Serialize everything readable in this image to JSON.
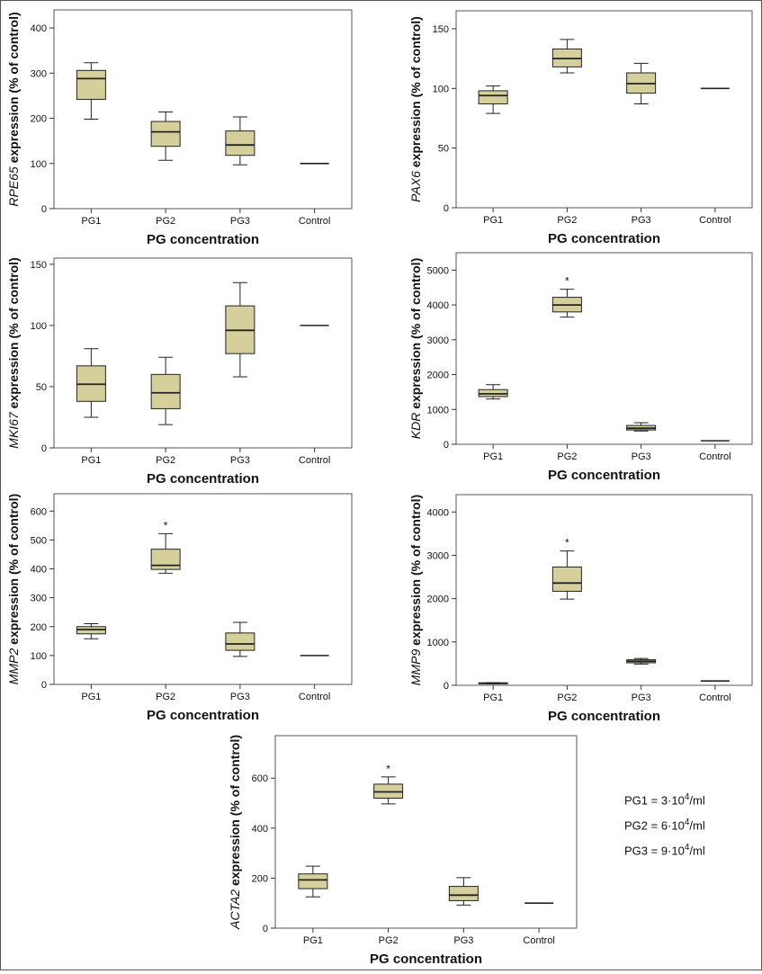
{
  "chart_data": [
    {
      "type": "box",
      "gene": "RPE65",
      "ylabel_suffix": " expression (% of control)",
      "xlabel": "PG concentration",
      "categories": [
        "PG1",
        "PG2",
        "PG3",
        "Control"
      ],
      "ylim": [
        0,
        440
      ],
      "yticks": [
        0,
        100,
        200,
        300,
        400
      ],
      "boxes": [
        {
          "min": 198,
          "q1": 242,
          "median": 288,
          "q3": 306,
          "max": 323,
          "sig": ""
        },
        {
          "min": 107,
          "q1": 138,
          "median": 170,
          "q3": 193,
          "max": 214,
          "sig": ""
        },
        {
          "min": 97,
          "q1": 118,
          "median": 141,
          "q3": 172,
          "max": 203,
          "sig": ""
        },
        {
          "min": 100,
          "q1": 100,
          "median": 100,
          "q3": 100,
          "max": 100,
          "sig": ""
        }
      ]
    },
    {
      "type": "box",
      "gene": "PAX6",
      "ylabel_suffix": " expression (% of control)",
      "xlabel": "PG concentration",
      "categories": [
        "PG1",
        "PG2",
        "PG3",
        "Control"
      ],
      "ylim": [
        0,
        165
      ],
      "yticks": [
        0,
        50,
        100,
        150
      ],
      "boxes": [
        {
          "min": 79,
          "q1": 87,
          "median": 94,
          "q3": 98,
          "max": 102,
          "sig": ""
        },
        {
          "min": 113,
          "q1": 118,
          "median": 125,
          "q3": 133,
          "max": 141,
          "sig": ""
        },
        {
          "min": 87,
          "q1": 96,
          "median": 104,
          "q3": 113,
          "max": 121,
          "sig": ""
        },
        {
          "min": 100,
          "q1": 100,
          "median": 100,
          "q3": 100,
          "max": 100,
          "sig": ""
        }
      ]
    },
    {
      "type": "box",
      "gene": "MKI67",
      "ylabel_suffix": " expression (% of control)",
      "xlabel": "PG concentration",
      "categories": [
        "PG1",
        "PG2",
        "PG3",
        "Control"
      ],
      "ylim": [
        0,
        155
      ],
      "yticks": [
        0,
        50,
        100,
        150
      ],
      "boxes": [
        {
          "min": 25,
          "q1": 38,
          "median": 52,
          "q3": 67,
          "max": 81,
          "sig": ""
        },
        {
          "min": 19,
          "q1": 32,
          "median": 45,
          "q3": 60,
          "max": 74,
          "sig": ""
        },
        {
          "min": 58,
          "q1": 77,
          "median": 96,
          "q3": 116,
          "max": 135,
          "sig": ""
        },
        {
          "min": 100,
          "q1": 100,
          "median": 100,
          "q3": 100,
          "max": 100,
          "sig": ""
        }
      ]
    },
    {
      "type": "box",
      "gene": "KDR",
      "ylabel_suffix": " expression (% of control)",
      "xlabel": "PG concentration",
      "categories": [
        "PG1",
        "PG2",
        "PG3",
        "Control"
      ],
      "ylim": [
        0,
        5500
      ],
      "yticks": [
        0,
        1000,
        2000,
        3000,
        4000,
        5000
      ],
      "boxes": [
        {
          "min": 1300,
          "q1": 1370,
          "median": 1450,
          "q3": 1570,
          "max": 1710,
          "sig": ""
        },
        {
          "min": 3650,
          "q1": 3800,
          "median": 4000,
          "q3": 4220,
          "max": 4450,
          "sig": "*"
        },
        {
          "min": 380,
          "q1": 410,
          "median": 460,
          "q3": 540,
          "max": 620,
          "sig": ""
        },
        {
          "min": 100,
          "q1": 100,
          "median": 100,
          "q3": 100,
          "max": 100,
          "sig": ""
        }
      ]
    },
    {
      "type": "box",
      "gene": "MMP2",
      "ylabel_suffix": " expression (% of control)",
      "xlabel": "PG concentration",
      "categories": [
        "PG1",
        "PG2",
        "PG3",
        "Control"
      ],
      "ylim": [
        0,
        660
      ],
      "yticks": [
        0,
        100,
        200,
        300,
        400,
        500,
        600
      ],
      "boxes": [
        {
          "min": 158,
          "q1": 175,
          "median": 190,
          "q3": 200,
          "max": 210,
          "sig": ""
        },
        {
          "min": 385,
          "q1": 398,
          "median": 412,
          "q3": 468,
          "max": 522,
          "sig": "*"
        },
        {
          "min": 97,
          "q1": 118,
          "median": 140,
          "q3": 178,
          "max": 215,
          "sig": ""
        },
        {
          "min": 100,
          "q1": 100,
          "median": 100,
          "q3": 100,
          "max": 100,
          "sig": ""
        }
      ]
    },
    {
      "type": "box",
      "gene": "MMP9",
      "ylabel_suffix": " expression (% of control)",
      "xlabel": "PG concentration",
      "categories": [
        "PG1",
        "PG2",
        "PG3",
        "Control"
      ],
      "ylim": [
        0,
        4400
      ],
      "yticks": [
        0,
        1000,
        2000,
        3000,
        4000
      ],
      "boxes": [
        {
          "min": 30,
          "q1": 40,
          "median": 50,
          "q3": 55,
          "max": 60,
          "sig": ""
        },
        {
          "min": 1990,
          "q1": 2170,
          "median": 2360,
          "q3": 2730,
          "max": 3100,
          "sig": "*"
        },
        {
          "min": 490,
          "q1": 520,
          "median": 555,
          "q3": 590,
          "max": 620,
          "sig": ""
        },
        {
          "min": 100,
          "q1": 100,
          "median": 100,
          "q3": 100,
          "max": 100,
          "sig": ""
        }
      ]
    },
    {
      "type": "box",
      "gene": "ACTA2",
      "ylabel_suffix": " expression (% of control)",
      "xlabel": "PG concentration",
      "categories": [
        "PG1",
        "PG2",
        "PG3",
        "Control"
      ],
      "ylim": [
        0,
        770
      ],
      "yticks": [
        0,
        200,
        400,
        600
      ],
      "boxes": [
        {
          "min": 125,
          "q1": 158,
          "median": 193,
          "q3": 217,
          "max": 248,
          "sig": ""
        },
        {
          "min": 497,
          "q1": 520,
          "median": 545,
          "q3": 576,
          "max": 605,
          "sig": "*"
        },
        {
          "min": 92,
          "q1": 110,
          "median": 132,
          "q3": 167,
          "max": 202,
          "sig": ""
        },
        {
          "min": 100,
          "q1": 100,
          "median": 100,
          "q3": 100,
          "max": 100,
          "sig": ""
        }
      ]
    }
  ],
  "legend": {
    "pg1": {
      "prefix": "PG1 = 3·10",
      "exp": "4",
      "suffix": "/ml"
    },
    "pg2": {
      "prefix": "PG2 = 6·10",
      "exp": "4",
      "suffix": "/ml"
    },
    "pg3": {
      "prefix": "PG3 = 9·10",
      "exp": "4",
      "suffix": "/ml"
    }
  },
  "colors": {
    "box_fill": "#d5cf9c",
    "stroke": "#222222",
    "frame": "#555555"
  }
}
